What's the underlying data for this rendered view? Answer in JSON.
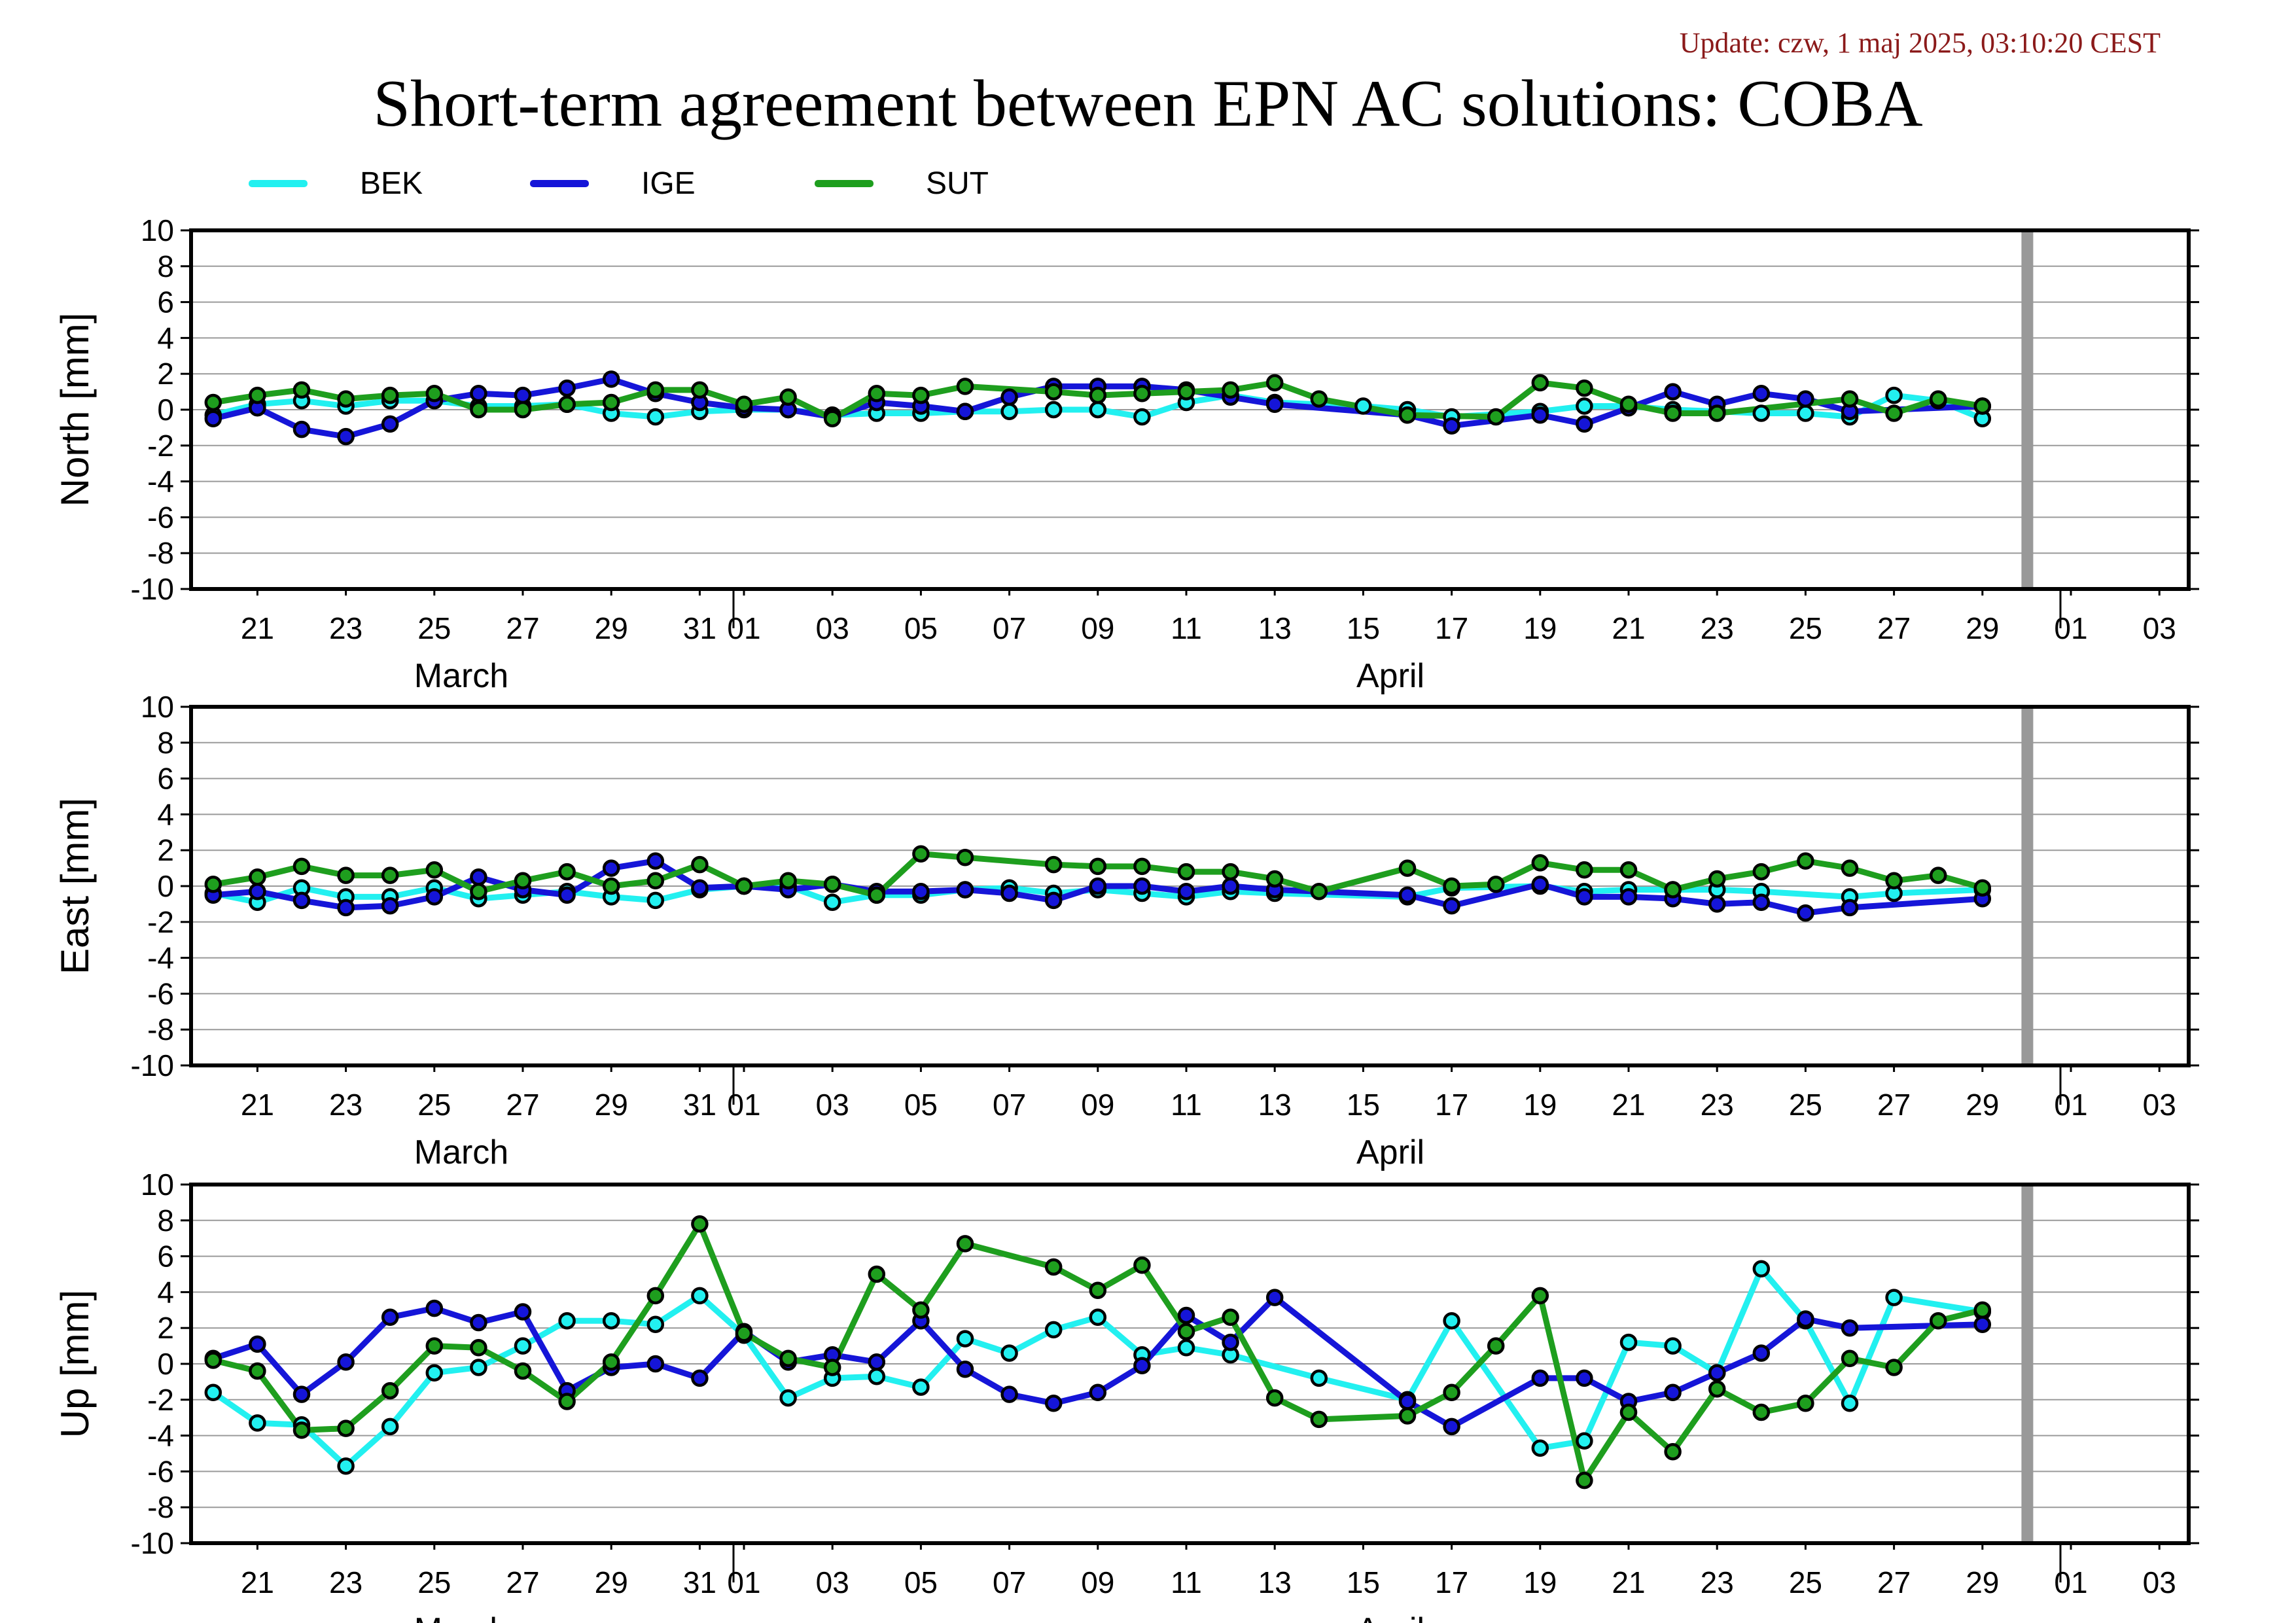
{
  "update_text": "Update: czw, 1 maj 2025, 03:10:20 CEST",
  "title": "Short-term agreement between EPN AC solutions: COBA",
  "legend": [
    {
      "name": "BEK",
      "color": "#22f0f0"
    },
    {
      "name": "IGE",
      "color": "#1515d8"
    },
    {
      "name": "SUT",
      "color": "#1e9e1e"
    }
  ],
  "chart_data": [
    {
      "type": "line",
      "ylabel": "North [mm]",
      "ylim": [
        -10,
        10
      ],
      "yticks": [
        10,
        8,
        6,
        4,
        2,
        0,
        -2,
        -4,
        -6,
        -8,
        -10
      ],
      "xlim": [
        "2025-03-19.5",
        "2025-05-04"
      ],
      "xticks": [
        "21",
        "23",
        "25",
        "27",
        "29",
        "31",
        "01",
        "03",
        "05",
        "07",
        "09",
        "11",
        "13",
        "15",
        "17",
        "19",
        "21",
        "23",
        "25",
        "27",
        "29",
        "01",
        "03"
      ],
      "months": [
        "March",
        "April"
      ],
      "grid": "horizontal",
      "marker_date": "2025-04-30",
      "series": [
        {
          "name": "BEK",
          "x": [
            "2025-03-20",
            "2025-03-21",
            "2025-03-22",
            "2025-03-23",
            "2025-03-24",
            "2025-03-25",
            "2025-03-26",
            "2025-03-27",
            "2025-03-28",
            "2025-03-29",
            "2025-03-30",
            "2025-03-31",
            "2025-04-01",
            "2025-04-02",
            "2025-04-03",
            "2025-04-04",
            "2025-04-05",
            "2025-04-06",
            "2025-04-07",
            "2025-04-08",
            "2025-04-09",
            "2025-04-10",
            "2025-04-11",
            "2025-04-12",
            "2025-04-13",
            "2025-04-15",
            "2025-04-16",
            "2025-04-17",
            "2025-04-19",
            "2025-04-20",
            "2025-04-21",
            "2025-04-22",
            "2025-04-23",
            "2025-04-24",
            "2025-04-25",
            "2025-04-26",
            "2025-04-27",
            "2025-04-28",
            "2025-04-29"
          ],
          "y": [
            -0.3,
            0.3,
            0.5,
            0.2,
            0.5,
            0.5,
            0.2,
            0.2,
            0.3,
            -0.2,
            -0.4,
            -0.1,
            0.0,
            0.0,
            -0.3,
            -0.2,
            -0.2,
            -0.1,
            -0.1,
            0.0,
            0.0,
            -0.4,
            0.4,
            0.8,
            0.4,
            0.2,
            0.0,
            -0.4,
            -0.1,
            0.2,
            0.2,
            0.0,
            -0.1,
            -0.2,
            -0.2,
            -0.4,
            0.8,
            0.5,
            -0.5
          ]
        },
        {
          "name": "IGE",
          "x": [
            "2025-03-20",
            "2025-03-21",
            "2025-03-22",
            "2025-03-23",
            "2025-03-24",
            "2025-03-25",
            "2025-03-26",
            "2025-03-27",
            "2025-03-28",
            "2025-03-29",
            "2025-03-30",
            "2025-03-31",
            "2025-04-01",
            "2025-04-02",
            "2025-04-03",
            "2025-04-04",
            "2025-04-05",
            "2025-04-06",
            "2025-04-07",
            "2025-04-08",
            "2025-04-09",
            "2025-04-10",
            "2025-04-11",
            "2025-04-12",
            "2025-04-13",
            "2025-04-16",
            "2025-04-17",
            "2025-04-19",
            "2025-04-20",
            "2025-04-21",
            "2025-04-22",
            "2025-04-23",
            "2025-04-24",
            "2025-04-25",
            "2025-04-26",
            "2025-04-29"
          ],
          "y": [
            -0.5,
            0.1,
            -1.1,
            -1.5,
            -0.8,
            0.5,
            0.9,
            0.8,
            1.2,
            1.7,
            0.9,
            0.4,
            0.1,
            0.0,
            -0.4,
            0.4,
            0.2,
            -0.1,
            0.7,
            1.3,
            1.3,
            1.3,
            1.1,
            0.7,
            0.3,
            -0.3,
            -0.9,
            -0.3,
            -0.8,
            0.1,
            1.0,
            0.3,
            0.9,
            0.6,
            -0.1,
            0.2
          ]
        },
        {
          "name": "SUT",
          "x": [
            "2025-03-20",
            "2025-03-21",
            "2025-03-22",
            "2025-03-23",
            "2025-03-24",
            "2025-03-25",
            "2025-03-26",
            "2025-03-27",
            "2025-03-28",
            "2025-03-29",
            "2025-03-30",
            "2025-03-31",
            "2025-04-01",
            "2025-04-02",
            "2025-04-03",
            "2025-04-04",
            "2025-04-05",
            "2025-04-06",
            "2025-04-08",
            "2025-04-09",
            "2025-04-10",
            "2025-04-11",
            "2025-04-12",
            "2025-04-13",
            "2025-04-14",
            "2025-04-16",
            "2025-04-18",
            "2025-04-19",
            "2025-04-20",
            "2025-04-21",
            "2025-04-22",
            "2025-04-23",
            "2025-04-26",
            "2025-04-27",
            "2025-04-28",
            "2025-04-29"
          ],
          "y": [
            0.4,
            0.8,
            1.1,
            0.6,
            0.8,
            0.9,
            0.0,
            0.0,
            0.3,
            0.4,
            1.1,
            1.1,
            0.3,
            0.7,
            -0.5,
            0.9,
            0.8,
            1.3,
            1.0,
            0.8,
            0.9,
            1.0,
            1.1,
            1.5,
            0.6,
            -0.3,
            -0.4,
            1.5,
            1.2,
            0.3,
            -0.2,
            -0.2,
            0.6,
            -0.2,
            0.6,
            0.2
          ]
        }
      ]
    },
    {
      "type": "line",
      "ylabel": "East [mm]",
      "ylim": [
        -10,
        10
      ],
      "yticks": [
        10,
        8,
        6,
        4,
        2,
        0,
        -2,
        -4,
        -6,
        -8,
        -10
      ],
      "xlim": [
        "2025-03-19.5",
        "2025-05-04"
      ],
      "xticks": [
        "21",
        "23",
        "25",
        "27",
        "29",
        "31",
        "01",
        "03",
        "05",
        "07",
        "09",
        "11",
        "13",
        "15",
        "17",
        "19",
        "21",
        "23",
        "25",
        "27",
        "29",
        "01",
        "03"
      ],
      "months": [
        "March",
        "April"
      ],
      "grid": "horizontal",
      "marker_date": "2025-04-30",
      "series": [
        {
          "name": "BEK",
          "x": [
            "2025-03-20",
            "2025-03-21",
            "2025-03-22",
            "2025-03-23",
            "2025-03-24",
            "2025-03-25",
            "2025-03-26",
            "2025-03-27",
            "2025-03-28",
            "2025-03-29",
            "2025-03-30",
            "2025-03-31",
            "2025-04-01",
            "2025-04-02",
            "2025-04-03",
            "2025-04-04",
            "2025-04-05",
            "2025-04-06",
            "2025-04-07",
            "2025-04-08",
            "2025-04-09",
            "2025-04-10",
            "2025-04-11",
            "2025-04-12",
            "2025-04-13",
            "2025-04-16",
            "2025-04-17",
            "2025-04-19",
            "2025-04-20",
            "2025-04-21",
            "2025-04-22",
            "2025-04-23",
            "2025-04-24",
            "2025-04-26",
            "2025-04-27",
            "2025-04-29"
          ],
          "y": [
            -0.4,
            -0.9,
            -0.1,
            -0.6,
            -0.6,
            -0.1,
            -0.7,
            -0.5,
            -0.3,
            -0.6,
            -0.8,
            -0.2,
            0.0,
            0.0,
            -0.9,
            -0.5,
            -0.5,
            -0.2,
            -0.1,
            -0.4,
            -0.2,
            -0.4,
            -0.6,
            -0.3,
            -0.4,
            -0.6,
            -0.1,
            0.0,
            -0.3,
            -0.2,
            -0.2,
            -0.2,
            -0.3,
            -0.6,
            -0.4,
            -0.2
          ]
        },
        {
          "name": "IGE",
          "x": [
            "2025-03-20",
            "2025-03-21",
            "2025-03-22",
            "2025-03-23",
            "2025-03-24",
            "2025-03-25",
            "2025-03-26",
            "2025-03-27",
            "2025-03-28",
            "2025-03-29",
            "2025-03-30",
            "2025-03-31",
            "2025-04-01",
            "2025-04-02",
            "2025-04-03",
            "2025-04-04",
            "2025-04-05",
            "2025-04-06",
            "2025-04-07",
            "2025-04-08",
            "2025-04-09",
            "2025-04-10",
            "2025-04-11",
            "2025-04-12",
            "2025-04-13",
            "2025-04-16",
            "2025-04-17",
            "2025-04-19",
            "2025-04-20",
            "2025-04-21",
            "2025-04-22",
            "2025-04-23",
            "2025-04-24",
            "2025-04-25",
            "2025-04-26",
            "2025-04-29"
          ],
          "y": [
            -0.5,
            -0.3,
            -0.8,
            -1.2,
            -1.1,
            -0.6,
            0.5,
            -0.2,
            -0.5,
            1.0,
            1.4,
            -0.1,
            0.0,
            -0.2,
            0.1,
            -0.3,
            -0.3,
            -0.2,
            -0.4,
            -0.8,
            0.0,
            0.0,
            -0.3,
            0.0,
            -0.2,
            -0.5,
            -1.1,
            0.1,
            -0.6,
            -0.6,
            -0.7,
            -1.0,
            -0.9,
            -1.5,
            -1.2,
            -0.7
          ]
        },
        {
          "name": "SUT",
          "x": [
            "2025-03-20",
            "2025-03-21",
            "2025-03-22",
            "2025-03-23",
            "2025-03-24",
            "2025-03-25",
            "2025-03-26",
            "2025-03-27",
            "2025-03-28",
            "2025-03-29",
            "2025-03-30",
            "2025-03-31",
            "2025-04-01",
            "2025-04-02",
            "2025-04-03",
            "2025-04-04",
            "2025-04-05",
            "2025-04-06",
            "2025-04-08",
            "2025-04-09",
            "2025-04-10",
            "2025-04-11",
            "2025-04-12",
            "2025-04-13",
            "2025-04-14",
            "2025-04-16",
            "2025-04-17",
            "2025-04-18",
            "2025-04-19",
            "2025-04-20",
            "2025-04-21",
            "2025-04-22",
            "2025-04-23",
            "2025-04-24",
            "2025-04-25",
            "2025-04-26",
            "2025-04-27",
            "2025-04-28",
            "2025-04-29"
          ],
          "y": [
            0.1,
            0.5,
            1.1,
            0.6,
            0.6,
            0.9,
            -0.3,
            0.3,
            0.8,
            0.0,
            0.3,
            1.2,
            0.0,
            0.3,
            0.1,
            -0.5,
            1.8,
            1.6,
            1.2,
            1.1,
            1.1,
            0.8,
            0.8,
            0.4,
            -0.3,
            1.0,
            0.0,
            0.1,
            1.3,
            0.9,
            0.9,
            -0.2,
            0.4,
            0.8,
            1.4,
            1.0,
            0.3,
            0.6,
            -0.1
          ]
        }
      ]
    },
    {
      "type": "line",
      "ylabel": "Up [mm]",
      "ylim": [
        -10,
        10
      ],
      "yticks": [
        10,
        8,
        6,
        4,
        2,
        0,
        -2,
        -4,
        -6,
        -8,
        -10
      ],
      "xlim": [
        "2025-03-19.5",
        "2025-05-04"
      ],
      "xticks": [
        "21",
        "23",
        "25",
        "27",
        "29",
        "31",
        "01",
        "03",
        "05",
        "07",
        "09",
        "11",
        "13",
        "15",
        "17",
        "19",
        "21",
        "23",
        "25",
        "27",
        "29",
        "01",
        "03"
      ],
      "months": [
        "March",
        "April"
      ],
      "grid": "horizontal",
      "marker_date": "2025-04-30",
      "series": [
        {
          "name": "BEK",
          "x": [
            "2025-03-20",
            "2025-03-21",
            "2025-03-22",
            "2025-03-23",
            "2025-03-24",
            "2025-03-25",
            "2025-03-26",
            "2025-03-27",
            "2025-03-28",
            "2025-03-29",
            "2025-03-30",
            "2025-03-31",
            "2025-04-01",
            "2025-04-02",
            "2025-04-03",
            "2025-04-04",
            "2025-04-05",
            "2025-04-06",
            "2025-04-07",
            "2025-04-08",
            "2025-04-09",
            "2025-04-10",
            "2025-04-11",
            "2025-04-12",
            "2025-04-14",
            "2025-04-16",
            "2025-04-17",
            "2025-04-19",
            "2025-04-20",
            "2025-04-21",
            "2025-04-22",
            "2025-04-23",
            "2025-04-24",
            "2025-04-25",
            "2025-04-26",
            "2025-04-27",
            "2025-04-29"
          ],
          "y": [
            -1.6,
            -3.3,
            -3.4,
            -5.7,
            -3.5,
            -0.5,
            -0.2,
            1.0,
            2.4,
            2.4,
            2.2,
            3.8,
            1.6,
            -1.9,
            -0.8,
            -0.7,
            -1.3,
            1.4,
            0.6,
            1.9,
            2.6,
            0.5,
            0.9,
            0.5,
            -0.8,
            -2.0,
            2.4,
            -4.7,
            -4.3,
            1.2,
            1.0,
            -0.5,
            5.3,
            2.4,
            -2.2,
            3.7,
            2.9
          ]
        },
        {
          "name": "IGE",
          "x": [
            "2025-03-20",
            "2025-03-21",
            "2025-03-22",
            "2025-03-23",
            "2025-03-24",
            "2025-03-25",
            "2025-03-26",
            "2025-03-27",
            "2025-03-28",
            "2025-03-29",
            "2025-03-30",
            "2025-03-31",
            "2025-04-01",
            "2025-04-02",
            "2025-04-03",
            "2025-04-04",
            "2025-04-05",
            "2025-04-06",
            "2025-04-07",
            "2025-04-08",
            "2025-04-09",
            "2025-04-10",
            "2025-04-11",
            "2025-04-12",
            "2025-04-13",
            "2025-04-16",
            "2025-04-17",
            "2025-04-19",
            "2025-04-20",
            "2025-04-21",
            "2025-04-22",
            "2025-04-23",
            "2025-04-24",
            "2025-04-25",
            "2025-04-26",
            "2025-04-29"
          ],
          "y": [
            0.3,
            1.1,
            -1.7,
            0.1,
            2.6,
            3.1,
            2.3,
            2.9,
            -1.5,
            -0.2,
            0.0,
            -0.8,
            1.8,
            0.1,
            0.5,
            0.1,
            2.4,
            -0.3,
            -1.7,
            -2.2,
            -1.6,
            -0.1,
            2.7,
            1.2,
            3.7,
            -2.1,
            -3.5,
            -0.8,
            -0.8,
            -2.1,
            -1.6,
            -0.5,
            0.6,
            2.5,
            2.0,
            2.2
          ]
        },
        {
          "name": "SUT",
          "x": [
            "2025-03-20",
            "2025-03-21",
            "2025-03-22",
            "2025-03-23",
            "2025-03-24",
            "2025-03-25",
            "2025-03-26",
            "2025-03-27",
            "2025-03-28",
            "2025-03-29",
            "2025-03-30",
            "2025-03-31",
            "2025-04-01",
            "2025-04-02",
            "2025-04-03",
            "2025-04-04",
            "2025-04-05",
            "2025-04-06",
            "2025-04-08",
            "2025-04-09",
            "2025-04-10",
            "2025-04-11",
            "2025-04-12",
            "2025-04-13",
            "2025-04-14",
            "2025-04-16",
            "2025-04-17",
            "2025-04-18",
            "2025-04-19",
            "2025-04-20",
            "2025-04-21",
            "2025-04-22",
            "2025-04-23",
            "2025-04-24",
            "2025-04-25",
            "2025-04-26",
            "2025-04-27",
            "2025-04-28",
            "2025-04-29"
          ],
          "y": [
            0.2,
            -0.4,
            -3.7,
            -3.6,
            -1.5,
            1.0,
            0.9,
            -0.4,
            -2.1,
            0.1,
            3.8,
            7.8,
            1.7,
            0.3,
            -0.2,
            5.0,
            3.0,
            6.7,
            5.4,
            4.1,
            5.5,
            1.8,
            2.6,
            -1.9,
            -3.1,
            -2.9,
            -1.6,
            1.0,
            3.8,
            -6.5,
            -2.7,
            -4.9,
            -1.4,
            -2.7,
            -2.2,
            0.3,
            -0.2,
            2.4,
            3.0
          ]
        }
      ]
    }
  ]
}
